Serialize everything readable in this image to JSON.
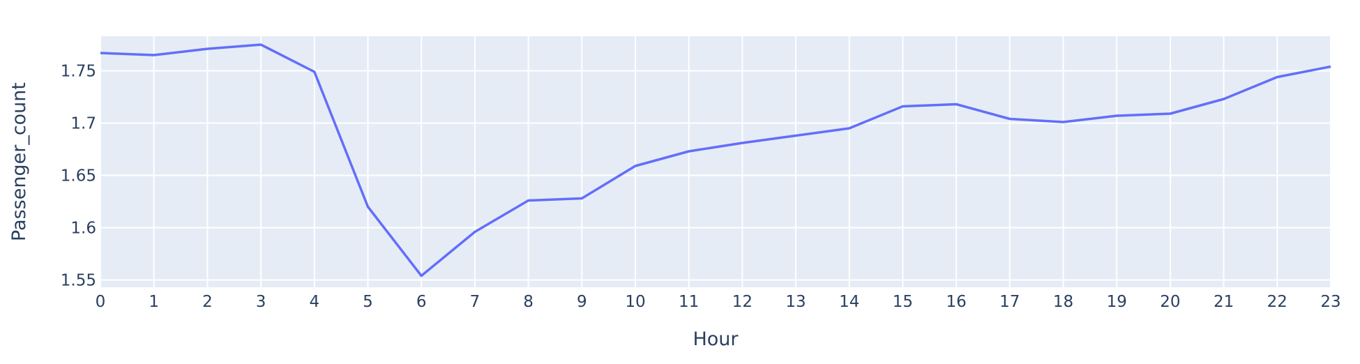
{
  "chart_data": {
    "type": "line",
    "title": "",
    "xlabel": "Hour",
    "ylabel": "Passenger_count",
    "x": [
      0,
      1,
      2,
      3,
      4,
      5,
      6,
      7,
      8,
      9,
      10,
      11,
      12,
      13,
      14,
      15,
      16,
      17,
      18,
      19,
      20,
      21,
      22,
      23
    ],
    "series": [
      {
        "values": [
          1.767,
          1.765,
          1.771,
          1.775,
          1.749,
          1.62,
          1.554,
          1.596,
          1.626,
          1.628,
          1.659,
          1.673,
          1.681,
          1.688,
          1.695,
          1.716,
          1.718,
          1.704,
          1.701,
          1.707,
          1.709,
          1.723,
          1.744,
          1.754
        ]
      }
    ],
    "xticks": [
      "0",
      "1",
      "2",
      "3",
      "4",
      "5",
      "6",
      "7",
      "8",
      "9",
      "10",
      "11",
      "12",
      "13",
      "14",
      "15",
      "16",
      "17",
      "18",
      "19",
      "20",
      "21",
      "22",
      "23"
    ],
    "yticks": [
      {
        "value": 1.55,
        "label": "1.55"
      },
      {
        "value": 1.6,
        "label": "1.6"
      },
      {
        "value": 1.65,
        "label": "1.65"
      },
      {
        "value": 1.7,
        "label": "1.7"
      },
      {
        "value": 1.75,
        "label": "1.75"
      }
    ],
    "xlim": [
      0,
      23
    ],
    "ylim": [
      1.543,
      1.783
    ],
    "grid": true,
    "colors": {
      "line": "#636efa",
      "plot_bg": "#e5ecf6",
      "grid": "#ffffff",
      "text": "#2a3f5f"
    }
  }
}
